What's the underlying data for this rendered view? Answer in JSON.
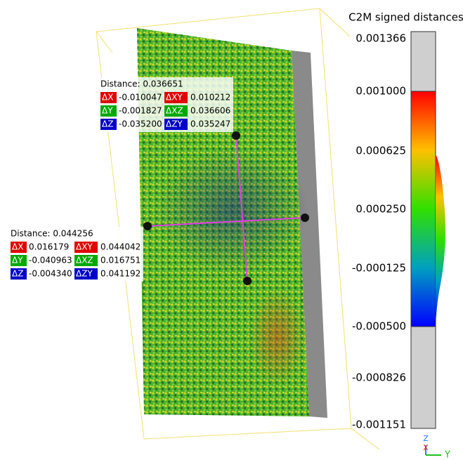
{
  "scale": {
    "title": "C2M signed distances",
    "labels": [
      "0.001366",
      "0.001000",
      "0.000625",
      "0.000250",
      "-0.000125",
      "-0.000500",
      "-0.000826",
      "-0.001151"
    ]
  },
  "labels": [
    {
      "title": "Distance: 0.036651",
      "rows": [
        [
          "ΔX",
          "-0.010047",
          "ΔXY",
          "0.010212"
        ],
        [
          "ΔY",
          "-0.001827",
          "ΔXZ",
          "0.036606"
        ],
        [
          "ΔZ",
          "-0.035200",
          "ΔZY",
          "0.035247"
        ]
      ]
    },
    {
      "title": "Distance: 0.044256",
      "rows": [
        [
          "ΔX",
          "0.016179",
          "ΔXY",
          "0.044042"
        ],
        [
          "ΔY",
          "-0.040963",
          "ΔXZ",
          "0.016751"
        ],
        [
          "ΔZ",
          "-0.004340",
          "ΔZY",
          "0.041192"
        ]
      ]
    }
  ],
  "axes": {
    "z": "Z",
    "x": "X",
    "y": "Y"
  }
}
